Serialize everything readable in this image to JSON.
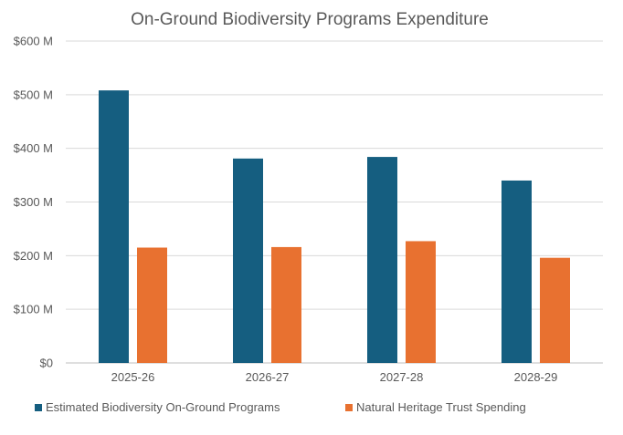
{
  "chart_data": {
    "type": "bar",
    "title": "On-Ground Biodiversity Programs Expenditure",
    "xlabel": "",
    "ylabel": "",
    "categories": [
      "2025-26",
      "2026-27",
      "2027-28",
      "2028-29"
    ],
    "series": [
      {
        "name": "Estimated Biodiversity On-Ground Programs",
        "color": "#155E80",
        "values": [
          508,
          381,
          384,
          340
        ]
      },
      {
        "name": "Natural Heritage Trust Spending",
        "color": "#E87130",
        "values": [
          215,
          216,
          227,
          196
        ]
      }
    ],
    "ylim": [
      0,
      600
    ],
    "yticks": [
      0,
      100,
      200,
      300,
      400,
      500,
      600
    ],
    "ytick_labels": [
      "$0",
      "$100 M",
      "$200 M",
      "$300 M",
      "$400 M",
      "$500 M",
      "$600 M"
    ],
    "grid": true,
    "legend_position": "bottom-left"
  },
  "colors": {
    "gridline": "#D9D9D9",
    "axis_line": "#BFBFBF",
    "text": "#595959",
    "title": "#595959"
  }
}
